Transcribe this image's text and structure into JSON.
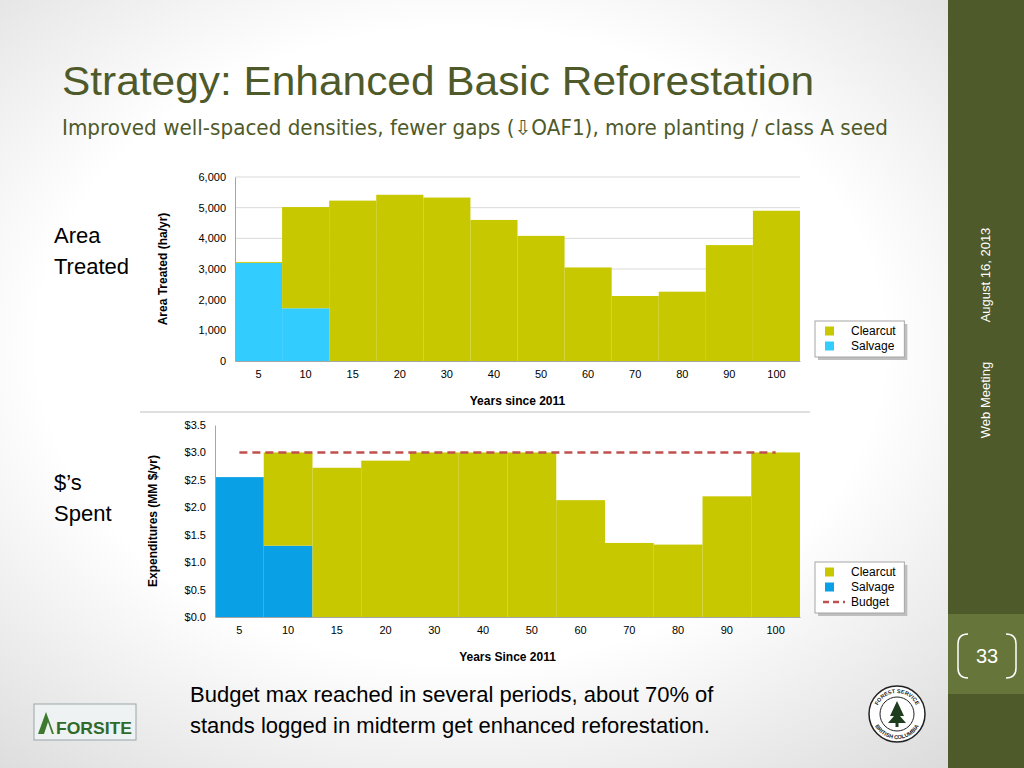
{
  "slide": {
    "title": "Strategy: Enhanced Basic Reforestation",
    "subtitle": "Improved well-spaced densities, fewer gaps (⇩OAF1), more planting / class A seed",
    "footer": [
      "Budget max reached in several periods, about 70% of",
      "stands logged in midterm get enhanced reforestation."
    ],
    "date": "August 16, 2013",
    "meeting": "Web Meeting",
    "page": "33",
    "logo": "FORSITE",
    "seal": [
      "FOREST SERVICE",
      "BRITISH COLUMBIA"
    ]
  },
  "chart_data": [
    {
      "type": "bar",
      "title": "Area Treated",
      "stacked": true,
      "grid": true,
      "legend": "lower right",
      "x_label": "Years since 2011",
      "y_label": "Area Treated (ha/yr)",
      "categories": [
        "5",
        "10",
        "15",
        "20",
        "30",
        "40",
        "50",
        "60",
        "70",
        "80",
        "90",
        "100"
      ],
      "ylim": [
        0,
        6000
      ],
      "yticks": [
        0,
        {
          "value": 1000,
          "label": "1,000"
        },
        {
          "value": 2000,
          "label": "2,000"
        },
        {
          "value": 3000,
          "label": "3,000"
        },
        {
          "value": 4000,
          "label": "4,000"
        },
        {
          "value": 5000,
          "label": "5,000"
        },
        {
          "value": 6000,
          "label": "6,000"
        }
      ],
      "series": [
        {
          "name": "Salvage",
          "color": "#33ccff",
          "values": [
            3200,
            1720,
            0,
            0,
            0,
            0,
            0,
            0,
            0,
            0,
            0,
            0
          ]
        },
        {
          "name": "Clearcut",
          "color": "#c8c800",
          "values": [
            30,
            3300,
            5230,
            5420,
            5330,
            4600,
            4080,
            3050,
            2120,
            2260,
            3780,
            4900
          ]
        }
      ]
    },
    {
      "type": "bar",
      "title": "$’s Spent",
      "stacked": true,
      "grid": false,
      "legend": "lower right",
      "x_label": "Years Since 2011",
      "y_label": "Expenditures (MM $/yr)",
      "categories": [
        "5",
        "10",
        "15",
        "20",
        "30",
        "40",
        "50",
        "60",
        "70",
        "80",
        "90",
        "100"
      ],
      "ylim": [
        0,
        3.5
      ],
      "yticks": [
        {
          "value": 0,
          "label": "$0.0"
        },
        {
          "value": 0.5,
          "label": "$0.5"
        },
        {
          "value": 1,
          "label": "$1.0"
        },
        {
          "value": 1.5,
          "label": "$1.5"
        },
        {
          "value": 2,
          "label": "$2.0"
        },
        {
          "value": 2.5,
          "label": "$2.5"
        },
        {
          "value": 3,
          "label": "$3.0"
        },
        {
          "value": 3.5,
          "label": "$3.5"
        }
      ],
      "series": [
        {
          "name": "Salvage",
          "color": "#0aa0e6",
          "values": [
            2.55,
            1.3,
            0,
            0,
            0,
            0,
            0,
            0,
            0,
            0,
            0,
            0
          ]
        },
        {
          "name": "Clearcut",
          "color": "#c8c800",
          "values": [
            0,
            1.7,
            2.72,
            2.85,
            3,
            3,
            3,
            2.13,
            1.35,
            1.32,
            2.2,
            3
          ]
        },
        {
          "name": "Budget",
          "type": "line",
          "line_style": "dashed",
          "color": "#c0504d",
          "values": [
            3,
            3,
            3,
            3,
            3,
            3,
            3,
            3,
            3,
            3,
            3,
            3
          ]
        }
      ]
    }
  ]
}
